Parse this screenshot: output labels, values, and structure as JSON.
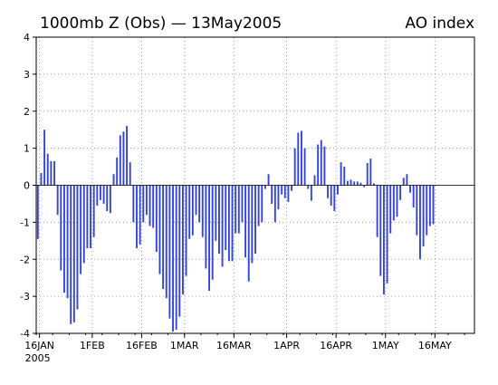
{
  "chart_data": {
    "type": "bar",
    "title": "1000mb Z (Obs) — 13May2005",
    "title_right": "AO index",
    "x_start_date": "2005-01-15",
    "x_end_date": "2005-05-28",
    "bar_color": "#3344dd",
    "grid": true,
    "ylim": [
      -4,
      4
    ],
    "y_ticks": [
      4,
      3,
      2,
      1,
      0,
      -1,
      -2,
      -3,
      -4
    ],
    "x_ticks": [
      {
        "date": "2005-01-16",
        "label": "16JAN",
        "sublabel": "2005"
      },
      {
        "date": "2005-02-01",
        "label": "1FEB",
        "sublabel": ""
      },
      {
        "date": "2005-02-16",
        "label": "16FEB",
        "sublabel": ""
      },
      {
        "date": "2005-03-01",
        "label": "1MAR",
        "sublabel": ""
      },
      {
        "date": "2005-03-16",
        "label": "16MAR",
        "sublabel": ""
      },
      {
        "date": "2005-04-01",
        "label": "1APR",
        "sublabel": ""
      },
      {
        "date": "2005-04-16",
        "label": "16APR",
        "sublabel": ""
      },
      {
        "date": "2005-05-01",
        "label": "1MAY",
        "sublabel": ""
      },
      {
        "date": "2005-05-16",
        "label": "16MAY",
        "sublabel": ""
      }
    ],
    "series": [
      {
        "start_date": "2005-01-15",
        "values": [
          -1.45,
          0.33,
          1.5,
          0.85,
          0.65,
          0.65,
          -0.8,
          -2.3,
          -2.9,
          -3.05,
          -3.75,
          -3.7,
          -3.35,
          -2.4,
          -2.1,
          -1.7,
          -1.7,
          -1.4,
          -0.55,
          -0.4,
          -0.5,
          -0.7,
          -0.75,
          0.3,
          0.75,
          1.35,
          1.45,
          1.6,
          0.62,
          -1.0,
          -1.7,
          -1.6,
          -1.0,
          -0.8,
          -1.1,
          -1.15,
          -1.8,
          -2.4,
          -2.8,
          -3.05,
          -3.6,
          -3.95,
          -3.9,
          -3.55,
          -2.95,
          -2.45,
          -1.45,
          -1.35,
          -0.8,
          -1.0,
          -1.4,
          -2.25,
          -2.85,
          -2.55,
          -1.5,
          -1.85,
          -2.2,
          -1.75,
          -2.05,
          -2.05,
          -1.3,
          -1.3,
          -1.0,
          -1.95,
          -2.6,
          -2.1,
          -1.85,
          -1.1,
          -1.0,
          -0.1,
          0.3,
          -0.5,
          -1.0,
          -0.65,
          -0.25,
          -0.35,
          -0.45,
          -0.15,
          1.0,
          1.42,
          1.47,
          1.0,
          -0.1,
          -0.42,
          0.27,
          1.1,
          1.22,
          1.05,
          -0.35,
          -0.55,
          -0.7,
          -0.25,
          0.62,
          0.5,
          0.12,
          0.15,
          0.1,
          0.1,
          0.07,
          -0.05,
          0.6,
          0.72,
          0.05,
          -1.4,
          -2.45,
          -2.95,
          -2.65,
          -1.3,
          -0.95,
          -0.85,
          -0.4,
          0.2,
          0.3,
          -0.2,
          -0.6,
          -1.35,
          -2.0,
          -1.65,
          -1.35,
          -1.1,
          -1.05
        ]
      }
    ]
  }
}
